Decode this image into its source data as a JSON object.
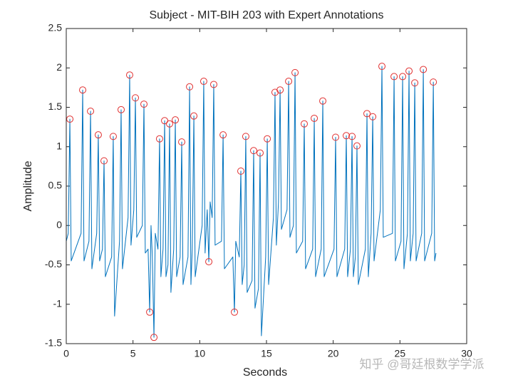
{
  "chart_data": {
    "type": "line",
    "title": "Subject - MIT-BIH 203 with Expert Annotations",
    "xlabel": "Seconds",
    "ylabel": "Amplitude",
    "watermark": "知乎 @哥廷根数学学派",
    "xlim": [
      0,
      30
    ],
    "xticks": [
      0,
      5,
      10,
      15,
      20,
      25,
      30
    ],
    "ylim": [
      -1.5,
      2.5
    ],
    "yticks": [
      -1.5,
      -1,
      -0.5,
      0,
      0.5,
      1,
      1.5,
      2,
      2.5
    ],
    "grid": false,
    "series": [
      {
        "type": "line",
        "color": "#0072bd",
        "x": [
          0,
          0.15,
          0.27,
          0.37,
          1.11,
          1.23,
          1.33,
          1.7,
          1.82,
          1.92,
          2.28,
          2.4,
          2.5,
          2.71,
          2.83,
          2.93,
          3.4,
          3.52,
          3.62,
          3.99,
          4.11,
          4.21,
          4.63,
          4.75,
          4.85,
          5.06,
          5.18,
          5.28,
          5.7,
          5.82,
          5.92,
          6.13,
          6.25,
          6.35,
          6.45,
          6.57,
          6.67,
          6.87,
          6.99,
          7.09,
          7.25,
          7.37,
          7.47,
          7.62,
          7.74,
          7.84,
          8.05,
          8.17,
          8.27,
          8.53,
          8.65,
          8.75,
          9.12,
          9.24,
          9.34,
          9.44,
          9.56,
          9.66,
          10.18,
          10.3,
          10.4,
          10.56,
          10.68,
          10.78,
          10.93,
          11.05,
          11.15,
          11.63,
          11.75,
          11.85,
          12.48,
          12.6,
          12.7,
          12.96,
          13.08,
          13.18,
          13.33,
          13.45,
          13.55,
          13.92,
          14.04,
          14.14,
          14.4,
          14.52,
          14.62,
          14.94,
          15.06,
          15.16,
          15.52,
          15.64,
          15.74,
          15.9,
          16.02,
          16.12,
          16.54,
          16.66,
          16.76,
          17.02,
          17.14,
          17.24,
          17.71,
          17.83,
          17.93,
          18.46,
          18.58,
          18.68,
          19.1,
          19.22,
          19.32,
          20.06,
          20.18,
          20.28,
          20.86,
          20.98,
          21.08,
          21.29,
          21.41,
          21.51,
          21.66,
          21.78,
          21.88,
          22.41,
          22.53,
          22.63,
          22.84,
          22.96,
          23.06,
          23.53,
          23.65,
          23.75,
          24.44,
          24.56,
          24.66,
          25.08,
          25.2,
          25.3,
          25.56,
          25.68,
          25.78,
          25.99,
          26.11,
          26.21,
          26.63,
          26.75,
          26.85,
          27.38,
          27.5,
          27.6,
          27.7
        ],
        "values": [
          -0.2,
          -0.1,
          1.35,
          -0.45,
          -0.1,
          1.72,
          -0.45,
          -0.2,
          1.45,
          -0.55,
          -0.1,
          1.15,
          -0.45,
          -0.3,
          0.82,
          -0.65,
          -0.4,
          1.13,
          -1.15,
          -0.2,
          1.47,
          -0.55,
          0.1,
          1.91,
          -0.25,
          0.2,
          1.62,
          -0.15,
          0.0,
          1.54,
          -0.35,
          -0.3,
          -1.1,
          0.0,
          -0.4,
          -1.42,
          -0.1,
          -0.3,
          1.1,
          -0.65,
          -0.3,
          1.33,
          -0.65,
          -0.5,
          1.29,
          -0.85,
          -0.3,
          1.34,
          -0.65,
          -0.4,
          1.06,
          -0.75,
          -0.4,
          1.76,
          -0.75,
          -0.3,
          1.39,
          -0.65,
          0.0,
          1.83,
          -0.35,
          0.2,
          -0.46,
          0.3,
          0.1,
          1.79,
          -0.25,
          -0.2,
          1.15,
          -0.55,
          -0.4,
          -1.1,
          -0.2,
          -0.4,
          0.69,
          -0.75,
          -0.5,
          1.13,
          -0.85,
          -0.7,
          0.95,
          -1.05,
          -0.8,
          0.92,
          -1.4,
          -0.4,
          1.1,
          -0.75,
          0.1,
          1.69,
          -0.25,
          0.3,
          1.72,
          -0.05,
          0.2,
          1.83,
          -0.15,
          0.0,
          1.94,
          -0.35,
          -0.2,
          1.29,
          -0.55,
          -0.3,
          1.36,
          -0.65,
          -0.3,
          1.58,
          -0.65,
          -0.3,
          1.12,
          -0.65,
          -0.3,
          1.14,
          -0.65,
          -0.3,
          1.13,
          -0.65,
          -0.4,
          1.01,
          -0.75,
          -0.3,
          1.42,
          -0.65,
          -0.1,
          1.38,
          -0.45,
          0.2,
          2.02,
          -0.15,
          -0.1,
          1.89,
          -0.45,
          -0.2,
          1.89,
          -0.55,
          -0.1,
          1.96,
          -0.45,
          -0.1,
          1.81,
          -0.45,
          -0.1,
          1.98,
          -0.45,
          -0.1,
          1.82,
          -0.45,
          -0.35
        ]
      },
      {
        "type": "scatter",
        "marker": "circle",
        "color": "#e03030",
        "x": [
          0.27,
          1.23,
          1.82,
          2.4,
          2.83,
          3.52,
          4.11,
          4.75,
          5.18,
          5.82,
          6.25,
          6.57,
          6.99,
          7.37,
          7.74,
          8.17,
          8.65,
          9.24,
          9.56,
          10.3,
          10.68,
          11.05,
          11.75,
          12.6,
          13.08,
          13.45,
          14.04,
          14.52,
          15.06,
          15.64,
          16.02,
          16.66,
          17.14,
          17.83,
          18.58,
          19.22,
          20.18,
          20.98,
          21.41,
          21.78,
          22.53,
          22.96,
          23.65,
          24.56,
          25.2,
          25.68,
          26.11,
          26.75,
          27.5
        ],
        "values": [
          1.35,
          1.72,
          1.45,
          1.15,
          0.82,
          1.13,
          1.47,
          1.91,
          1.62,
          1.54,
          -1.1,
          -1.42,
          1.1,
          1.33,
          1.29,
          1.34,
          1.06,
          1.76,
          1.39,
          1.83,
          -0.46,
          1.79,
          1.15,
          -1.1,
          0.69,
          1.13,
          0.95,
          0.92,
          1.1,
          1.69,
          1.72,
          1.83,
          1.94,
          1.29,
          1.36,
          1.58,
          1.12,
          1.14,
          1.13,
          1.01,
          1.42,
          1.38,
          2.02,
          1.89,
          1.89,
          1.96,
          1.81,
          1.98,
          1.82
        ]
      }
    ]
  }
}
